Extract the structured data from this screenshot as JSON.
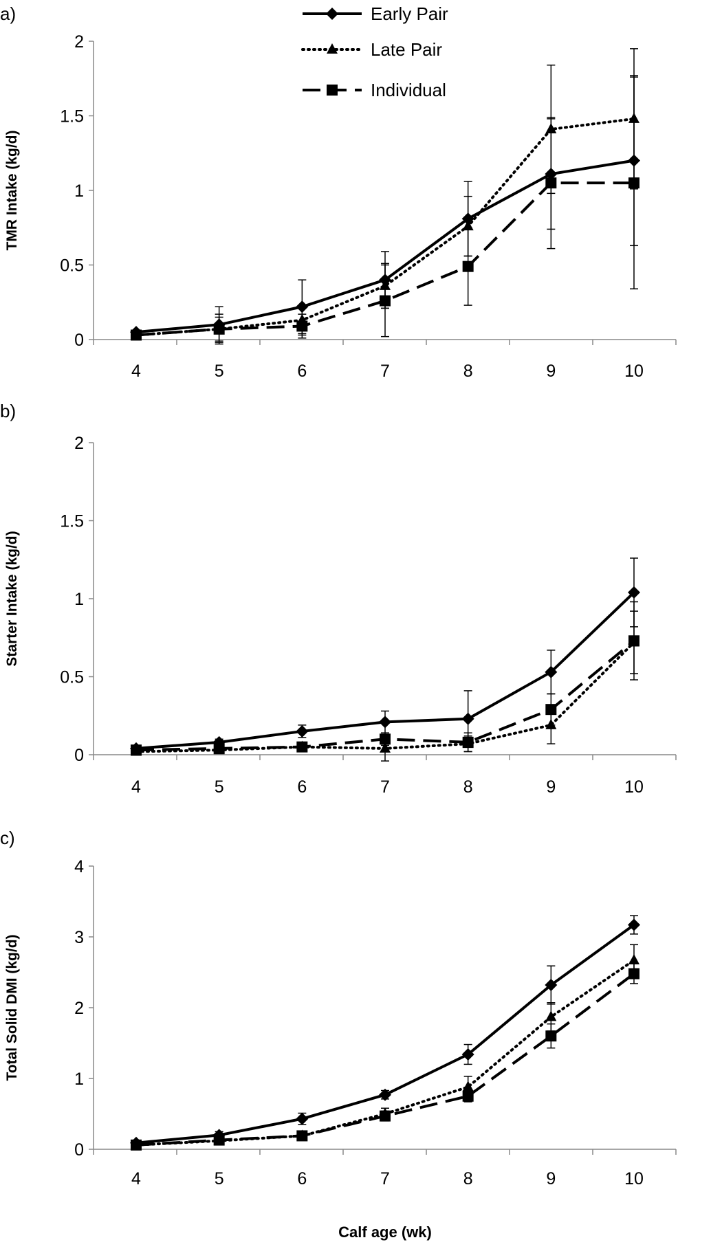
{
  "legend": {
    "placement": "top-center",
    "items": [
      {
        "name": "Early Pair",
        "line": "solid",
        "marker": "diamond"
      },
      {
        "name": "Late Pair",
        "line": "dotted",
        "marker": "triangle"
      },
      {
        "name": "Individual",
        "line": "dashed",
        "marker": "square"
      }
    ]
  },
  "xlabel": "Calf age (wk)",
  "chart_data": [
    {
      "type": "line",
      "panel_label": "a)",
      "ylabel": "TMR Intake (kg/d)",
      "x": [
        4,
        5,
        6,
        7,
        8,
        9,
        10
      ],
      "ylim": [
        0,
        2
      ],
      "yticks": [
        "0",
        "0.5",
        "1",
        "1.5",
        "2"
      ],
      "xticks": [
        "4",
        "5",
        "6",
        "7",
        "8",
        "9",
        "10"
      ],
      "grid": false,
      "series": [
        {
          "name": "Early Pair",
          "values": [
            0.05,
            0.1,
            0.22,
            0.4,
            0.81,
            1.11,
            1.2
          ],
          "errors": [
            0,
            0.12,
            0.18,
            0.19,
            0.25,
            0.37,
            0.57
          ]
        },
        {
          "name": "Late Pair",
          "values": [
            0.03,
            0.07,
            0.13,
            0.36,
            0.76,
            1.41,
            1.48
          ],
          "errors": [
            0,
            0.08,
            0.1,
            0.15,
            0.2,
            0.43,
            0.47
          ]
        },
        {
          "name": "Individual",
          "values": [
            0.03,
            0.07,
            0.09,
            0.26,
            0.49,
            1.05,
            1.05
          ],
          "errors": [
            0,
            0.1,
            0.08,
            0.24,
            0.26,
            0.44,
            0.71
          ]
        }
      ]
    },
    {
      "type": "line",
      "panel_label": "b)",
      "ylabel": "Starter Intake (kg/d)",
      "x": [
        4,
        5,
        6,
        7,
        8,
        9,
        10
      ],
      "ylim": [
        0,
        2
      ],
      "yticks": [
        "0",
        "0.5",
        "1",
        "1.5",
        "2"
      ],
      "xticks": [
        "4",
        "5",
        "6",
        "7",
        "8",
        "9",
        "10"
      ],
      "grid": false,
      "series": [
        {
          "name": "Early Pair",
          "values": [
            0.04,
            0.08,
            0.15,
            0.21,
            0.23,
            0.53,
            1.04
          ],
          "errors": [
            0,
            0.02,
            0.04,
            0.07,
            0.18,
            0.14,
            0.22
          ]
        },
        {
          "name": "Late Pair",
          "values": [
            0.02,
            0.03,
            0.05,
            0.04,
            0.07,
            0.19,
            0.72
          ],
          "errors": [
            0,
            0.01,
            0.02,
            0.08,
            0.05,
            0.12,
            0.2
          ]
        },
        {
          "name": "Individual",
          "values": [
            0.03,
            0.04,
            0.05,
            0.1,
            0.08,
            0.29,
            0.73
          ],
          "errors": [
            0,
            0.01,
            0.02,
            0.04,
            0.06,
            0.1,
            0.25
          ]
        }
      ]
    },
    {
      "type": "line",
      "panel_label": "c)",
      "ylabel": "Total Solid DMI (kg/d)",
      "x": [
        4,
        5,
        6,
        7,
        8,
        9,
        10
      ],
      "ylim": [
        0,
        4
      ],
      "yticks": [
        "0",
        "1",
        "2",
        "3",
        "4"
      ],
      "xticks": [
        "4",
        "5",
        "6",
        "7",
        "8",
        "9",
        "10"
      ],
      "grid": false,
      "series": [
        {
          "name": "Early Pair",
          "values": [
            0.09,
            0.2,
            0.43,
            0.77,
            1.34,
            2.32,
            3.17
          ],
          "errors": [
            0.03,
            0.05,
            0.08,
            0.06,
            0.14,
            0.27,
            0.13
          ]
        },
        {
          "name": "Late Pair",
          "values": [
            0.06,
            0.12,
            0.19,
            0.5,
            0.88,
            1.87,
            2.67
          ],
          "errors": [
            0.02,
            0.03,
            0.04,
            0.08,
            0.15,
            0.2,
            0.22
          ]
        },
        {
          "name": "Individual",
          "values": [
            0.06,
            0.13,
            0.19,
            0.47,
            0.75,
            1.6,
            2.48
          ],
          "errors": [
            0.02,
            0.05,
            0.04,
            0.07,
            0.08,
            0.17,
            0.14
          ]
        }
      ]
    }
  ]
}
